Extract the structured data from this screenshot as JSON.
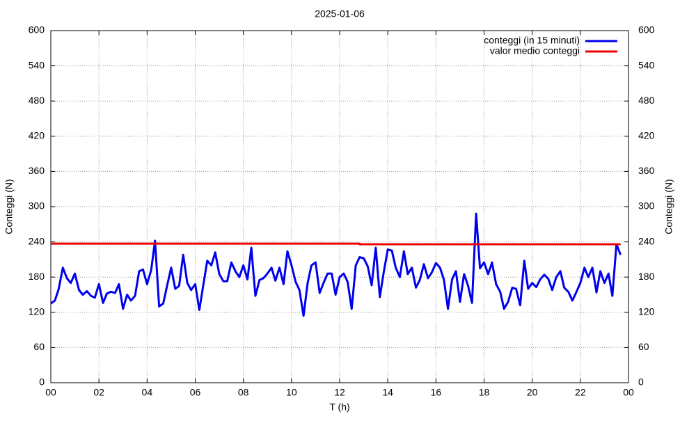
{
  "chart_data": {
    "type": "line",
    "title": "2025-01-06",
    "xlabel": "T (h)",
    "ylabel": "Conteggi (N)",
    "y2label": "Conteggi (N)",
    "xlim": [
      0,
      24
    ],
    "xticks": [
      {
        "value": 0,
        "label": "00"
      },
      {
        "value": 2,
        "label": "02"
      },
      {
        "value": 4,
        "label": "04"
      },
      {
        "value": 6,
        "label": "06"
      },
      {
        "value": 8,
        "label": "08"
      },
      10,
      12,
      14,
      16,
      18,
      20,
      22,
      {
        "value": 24,
        "label": "00"
      }
    ],
    "ylim": [
      0,
      600
    ],
    "yticks": [
      0,
      60,
      120,
      180,
      240,
      300,
      360,
      420,
      480,
      540,
      600
    ],
    "y2lim": [
      0,
      600
    ],
    "y2ticks": [
      0,
      60,
      120,
      180,
      240,
      300,
      360,
      420,
      480,
      540,
      600
    ],
    "grid": true,
    "legend": "upper right",
    "series": [
      {
        "name": "conteggi (in 15 minuti)",
        "color": "#0000ee",
        "x": [
          0,
          0.17,
          0.33,
          0.5,
          0.67,
          0.83,
          1,
          1.17,
          1.33,
          1.5,
          1.67,
          1.83,
          2,
          2.17,
          2.33,
          2.5,
          2.67,
          2.83,
          3,
          3.17,
          3.33,
          3.5,
          3.67,
          3.83,
          4,
          4.17,
          4.33,
          4.5,
          4.67,
          4.83,
          5,
          5.17,
          5.33,
          5.5,
          5.67,
          5.83,
          6,
          6.17,
          6.33,
          6.5,
          6.67,
          6.83,
          7,
          7.17,
          7.33,
          7.5,
          7.67,
          7.83,
          8,
          8.17,
          8.33,
          8.5,
          8.67,
          8.83,
          9,
          9.17,
          9.33,
          9.5,
          9.67,
          9.83,
          10,
          10.17,
          10.33,
          10.5,
          10.67,
          10.83,
          11,
          11.17,
          11.33,
          11.5,
          11.67,
          11.83,
          12,
          12.17,
          12.33,
          12.5,
          12.67,
          12.83,
          13,
          13.17,
          13.33,
          13.5,
          13.67,
          13.83,
          14,
          14.17,
          14.33,
          14.5,
          14.67,
          14.83,
          15,
          15.17,
          15.33,
          15.5,
          15.67,
          15.83,
          16,
          16.17,
          16.33,
          16.5,
          16.67,
          16.83,
          17,
          17.17,
          17.33,
          17.5,
          17.67,
          17.83,
          18,
          18.17,
          18.33,
          18.5,
          18.67,
          18.83,
          19,
          19.17,
          19.33,
          19.5,
          19.67,
          19.83,
          20,
          20.17,
          20.33,
          20.5,
          20.67,
          20.83,
          21,
          21.17,
          21.33,
          21.5,
          21.67,
          21.83,
          22,
          22.17,
          22.33,
          22.5,
          22.67,
          22.83,
          23,
          23.17,
          23.33,
          23.5,
          23.67
        ],
        "values": [
          135,
          140,
          160,
          196,
          178,
          170,
          186,
          158,
          150,
          156,
          148,
          145,
          168,
          136,
          152,
          155,
          153,
          168,
          126,
          150,
          140,
          148,
          190,
          193,
          168,
          192,
          242,
          130,
          135,
          165,
          196,
          160,
          165,
          218,
          170,
          158,
          168,
          124,
          165,
          208,
          200,
          222,
          185,
          173,
          173,
          205,
          190,
          180,
          200,
          176,
          230,
          148,
          175,
          178,
          186,
          196,
          174,
          196,
          168,
          224,
          200,
          172,
          158,
          114,
          170,
          200,
          205,
          153,
          170,
          186,
          186,
          150,
          180,
          186,
          172,
          126,
          200,
          214,
          212,
          198,
          166,
          230,
          146,
          188,
          227,
          225,
          196,
          180,
          224,
          185,
          196,
          162,
          175,
          202,
          178,
          188,
          204,
          196,
          176,
          126,
          176,
          190,
          138,
          185,
          166,
          136,
          288,
          195,
          205,
          185,
          205,
          168,
          155,
          126,
          138,
          162,
          160,
          132,
          208,
          160,
          170,
          163,
          176,
          184,
          177,
          158,
          180,
          190,
          162,
          155,
          140,
          154,
          170,
          196,
          180,
          196,
          154,
          190,
          170,
          186,
          148,
          236,
          218
        ]
      },
      {
        "name": "valor medio conteggi",
        "color": "#ee0000",
        "x": [
          0,
          12.83,
          12.83,
          23.67
        ],
        "values": [
          237,
          237,
          236,
          236
        ]
      }
    ]
  }
}
